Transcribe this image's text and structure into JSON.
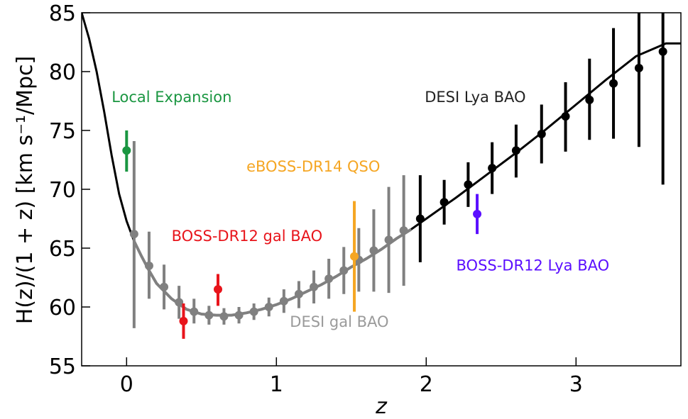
{
  "chart_data": {
    "type": "scatter",
    "title": "",
    "xlabel": "z",
    "ylabel": "H(z)/(1 + z) [km s⁻¹/Mpc]",
    "xlim": [
      -0.3,
      3.7
    ],
    "ylim": [
      55,
      85
    ],
    "xticks": [
      0,
      1,
      2,
      3
    ],
    "yticks": [
      55,
      60,
      65,
      70,
      75,
      80,
      85
    ],
    "grid": false,
    "legend": "none",
    "model_curve": {
      "color": "#000000",
      "x": [
        -0.3,
        -0.25,
        -0.2,
        -0.15,
        -0.1,
        -0.05,
        0.0,
        0.05,
        0.1,
        0.15,
        0.2,
        0.3,
        0.4,
        0.5,
        0.6,
        0.7,
        0.8,
        0.9,
        1.0,
        1.1,
        1.2,
        1.3,
        1.4,
        1.5,
        1.6,
        1.7,
        1.8,
        1.9,
        2.0,
        2.2,
        2.4,
        2.6,
        2.8,
        3.0,
        3.2,
        3.4,
        3.6,
        3.7
      ],
      "y": [
        85.0,
        82.8,
        80.0,
        76.6,
        72.9,
        69.6,
        67.3,
        65.6,
        64.3,
        63.1,
        62.0,
        60.7,
        59.8,
        59.4,
        59.3,
        59.3,
        59.5,
        59.8,
        60.2,
        60.7,
        61.3,
        61.9,
        62.6,
        63.4,
        64.1,
        64.9,
        65.8,
        66.6,
        67.5,
        69.3,
        71.2,
        73.1,
        75.1,
        77.2,
        79.3,
        81.3,
        82.4,
        82.4
      ]
    },
    "series": [
      {
        "name": "Local Expansion",
        "color": "#1a9641",
        "points": [
          {
            "x": 0.0,
            "y": 73.3,
            "lo": 71.5,
            "hi": 75.0
          }
        ]
      },
      {
        "name": "DESI gal BAO",
        "color": "#808080",
        "points": [
          {
            "x": 0.05,
            "y": 66.2,
            "lo": 58.2,
            "hi": 74.1
          },
          {
            "x": 0.15,
            "y": 63.5,
            "lo": 60.7,
            "hi": 66.4
          },
          {
            "x": 0.25,
            "y": 61.7,
            "lo": 59.8,
            "hi": 63.6
          },
          {
            "x": 0.35,
            "y": 60.4,
            "lo": 59.0,
            "hi": 61.8
          },
          {
            "x": 0.45,
            "y": 59.6,
            "lo": 58.6,
            "hi": 60.7
          },
          {
            "x": 0.55,
            "y": 59.3,
            "lo": 58.5,
            "hi": 60.1
          },
          {
            "x": 0.65,
            "y": 59.2,
            "lo": 58.5,
            "hi": 59.9
          },
          {
            "x": 0.75,
            "y": 59.3,
            "lo": 58.6,
            "hi": 60.0
          },
          {
            "x": 0.85,
            "y": 59.6,
            "lo": 58.9,
            "hi": 60.3
          },
          {
            "x": 0.95,
            "y": 60.0,
            "lo": 59.2,
            "hi": 60.8
          },
          {
            "x": 1.05,
            "y": 60.5,
            "lo": 59.5,
            "hi": 61.5
          },
          {
            "x": 1.15,
            "y": 61.1,
            "lo": 59.9,
            "hi": 62.2
          },
          {
            "x": 1.25,
            "y": 61.7,
            "lo": 60.3,
            "hi": 63.1
          },
          {
            "x": 1.35,
            "y": 62.4,
            "lo": 60.7,
            "hi": 64.1
          },
          {
            "x": 1.45,
            "y": 63.1,
            "lo": 61.1,
            "hi": 65.1
          },
          {
            "x": 1.55,
            "y": 64.0,
            "lo": 61.3,
            "hi": 66.7
          },
          {
            "x": 1.65,
            "y": 64.8,
            "lo": 61.3,
            "hi": 68.3
          },
          {
            "x": 1.75,
            "y": 65.7,
            "lo": 61.2,
            "hi": 70.2
          },
          {
            "x": 1.85,
            "y": 66.5,
            "lo": 61.8,
            "hi": 71.2
          }
        ]
      },
      {
        "name": "BOSS-DR12 gal BAO",
        "color": "#e8141b",
        "points": [
          {
            "x": 0.38,
            "y": 58.8,
            "lo": 57.3,
            "hi": 60.3
          },
          {
            "x": 0.61,
            "y": 61.5,
            "lo": 60.1,
            "hi": 62.8
          }
        ]
      },
      {
        "name": "eBOSS-DR14 QSO",
        "color": "#f5a623",
        "points": [
          {
            "x": 1.52,
            "y": 64.3,
            "lo": 59.6,
            "hi": 69.0
          }
        ]
      },
      {
        "name": "DESI Lya BAO",
        "color": "#000000",
        "points": [
          {
            "x": 1.96,
            "y": 67.5,
            "lo": 63.8,
            "hi": 71.2
          },
          {
            "x": 2.12,
            "y": 68.9,
            "lo": 67.0,
            "hi": 70.8
          },
          {
            "x": 2.28,
            "y": 70.4,
            "lo": 68.5,
            "hi": 72.3
          },
          {
            "x": 2.44,
            "y": 71.8,
            "lo": 69.6,
            "hi": 74.0
          },
          {
            "x": 2.6,
            "y": 73.3,
            "lo": 71.0,
            "hi": 75.5
          },
          {
            "x": 2.77,
            "y": 74.7,
            "lo": 72.2,
            "hi": 77.2
          },
          {
            "x": 2.93,
            "y": 76.2,
            "lo": 73.2,
            "hi": 79.1
          },
          {
            "x": 3.09,
            "y": 77.6,
            "lo": 74.2,
            "hi": 81.1
          },
          {
            "x": 3.25,
            "y": 79.0,
            "lo": 74.3,
            "hi": 83.7
          },
          {
            "x": 3.42,
            "y": 80.3,
            "lo": 73.6,
            "hi": 85.0
          },
          {
            "x": 3.58,
            "y": 81.7,
            "lo": 70.4,
            "hi": 85.0
          }
        ]
      },
      {
        "name": "BOSS-DR12 Lya BAO",
        "color": "#5b0fff",
        "points": [
          {
            "x": 2.34,
            "y": 67.9,
            "lo": 66.2,
            "hi": 69.6
          }
        ]
      }
    ],
    "annotations": [
      {
        "text": "Local Expansion",
        "color": "#1a9641",
        "x": -0.1,
        "y": 77.4
      },
      {
        "text": "DESI Lya BAO",
        "color": "#222222",
        "x": 1.99,
        "y": 77.4
      },
      {
        "text": "eBOSS-DR14 QSO",
        "color": "#f5a623",
        "x": 0.8,
        "y": 71.5
      },
      {
        "text": "BOSS-DR12 gal BAO",
        "color": "#e8141b",
        "x": 0.3,
        "y": 65.6
      },
      {
        "text": "BOSS-DR12 Lya BAO",
        "color": "#5b0fff",
        "x": 2.2,
        "y": 63.1
      },
      {
        "text": "DESI gal BAO",
        "color": "#9a9a9a",
        "x": 1.09,
        "y": 58.3
      }
    ]
  }
}
